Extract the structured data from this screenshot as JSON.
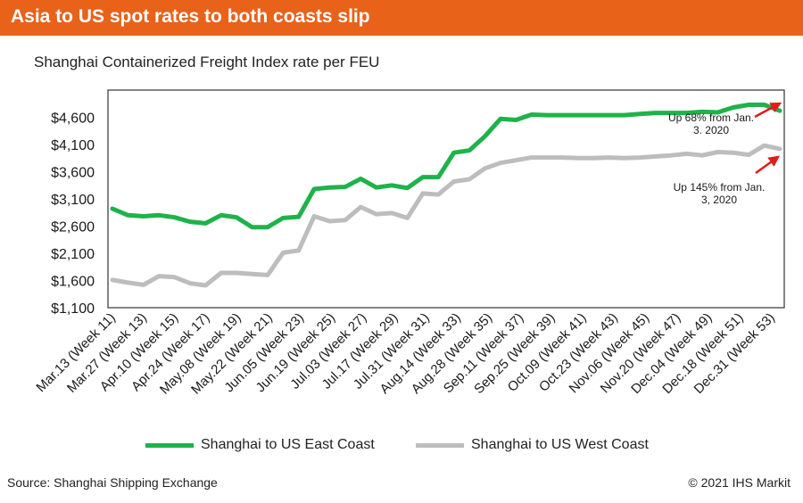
{
  "header": {
    "title": "Asia to US spot rates to both coasts slip"
  },
  "colors": {
    "banner": "#e8621a",
    "east": "#1fb24a",
    "west": "#bdbdbd",
    "arrow": "#e11b1b",
    "frame": "#333333"
  },
  "chart_data": {
    "type": "line",
    "title": "Shanghai Containerized Freight Index rate per FEU",
    "xlabel": "",
    "ylabel": "",
    "ylim": [
      1100,
      5100
    ],
    "yticks": [
      "$4,600",
      "$4,100",
      "$3,600",
      "$3,100",
      "$2,600",
      "$2,100",
      "$1,600",
      "$1,100"
    ],
    "ytick_values": [
      4600,
      4100,
      3600,
      3100,
      2600,
      2100,
      1600,
      1100
    ],
    "x_tick_labels": [
      "Mar.13 (Week 11)",
      "Mar.27 (Week 13)",
      "Apr.10 (Week 15)",
      "Apr.24 (Week 17)",
      "May.08 (Week 19)",
      "May.22 (Week 21)",
      "Jun.05 (Week 23)",
      "Jun.19 (Week 25)",
      "Jul.03 (Week 27)",
      "Jul.17 (Week 29)",
      "Jul.31 (Week 31)",
      "Aug.14 (Week 33)",
      "Aug.28 (Week 35)",
      "Sep.11 (Week 37)",
      "Sep.25 (Week 39)",
      "Oct.09 (Week 41)",
      "Oct.23 (Week 43)",
      "Nov.06 (Week 45)",
      "Nov.20 (Week 47)",
      "Dec.04 (Week 49)",
      "Dec.18 (Week 51)",
      "Dec.31 (Week 53)"
    ],
    "series": [
      {
        "name": "Shanghai to US East Coast",
        "values": [
          2920,
          2800,
          2780,
          2800,
          2760,
          2680,
          2650,
          2800,
          2760,
          2580,
          2580,
          2750,
          2770,
          3280,
          3310,
          3320,
          3470,
          3310,
          3350,
          3300,
          3500,
          3500,
          3950,
          3990,
          4250,
          4570,
          4550,
          4650,
          4640,
          4640,
          4640,
          4640,
          4640,
          4640,
          4660,
          4680,
          4680,
          4680,
          4700,
          4690,
          4780,
          4830,
          4830,
          4720
        ]
      },
      {
        "name": "Shanghai to US West Coast",
        "values": [
          1610,
          1560,
          1520,
          1680,
          1660,
          1550,
          1510,
          1740,
          1740,
          1720,
          1700,
          2110,
          2150,
          2780,
          2690,
          2710,
          2950,
          2820,
          2840,
          2750,
          3200,
          3180,
          3420,
          3460,
          3660,
          3760,
          3810,
          3860,
          3860,
          3860,
          3850,
          3850,
          3860,
          3850,
          3860,
          3880,
          3900,
          3930,
          3900,
          3960,
          3950,
          3910,
          4080,
          4020
        ]
      }
    ],
    "annotations": [
      {
        "text_lines": [
          "Up 68% from Jan.",
          "3. 2020"
        ],
        "series": "Shanghai to US East Coast"
      },
      {
        "text_lines": [
          "Up 145% from Jan.",
          "3, 2020"
        ],
        "series": "Shanghai to US West Coast"
      }
    ],
    "legend_position": "bottom",
    "grid": false
  },
  "footer": {
    "source": "Source: Shanghai Shipping Exchange",
    "copyright": "© 2021 IHS Markit"
  }
}
